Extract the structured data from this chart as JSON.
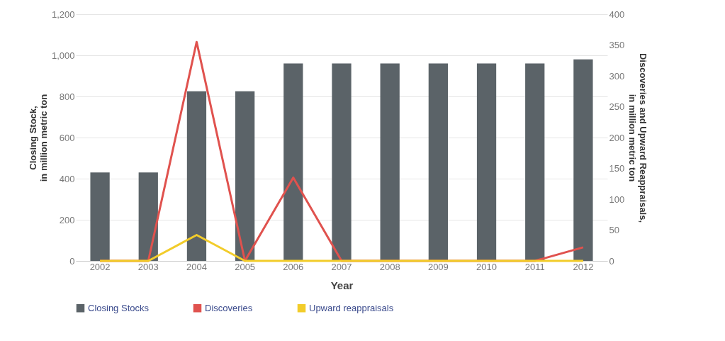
{
  "chart_data": {
    "type": "bar",
    "xlabel": "Year",
    "ylabel": "Closing Stock,\nin million metric ton",
    "y2label": "Discoveries and Upward Reappraisals,\nin million metric ton",
    "categories": [
      "2002",
      "2003",
      "2004",
      "2005",
      "2006",
      "2007",
      "2008",
      "2009",
      "2010",
      "2011",
      "2012"
    ],
    "series": [
      {
        "name": "Closing Stocks",
        "color": "#5b6368",
        "values": [
          430,
          430,
          825,
          825,
          960,
          960,
          960,
          960,
          960,
          960,
          980
        ]
      },
      {
        "name": "Discoveries",
        "type": "line",
        "axis": "y2",
        "color": "#e0524e",
        "values": [
          0,
          0,
          355,
          0,
          135,
          0,
          0,
          0,
          0,
          0,
          22
        ]
      },
      {
        "name": "Upward reappraisals",
        "type": "line",
        "axis": "y2",
        "color": "#f2cc2a",
        "values": [
          0,
          0,
          42,
          0,
          0,
          0,
          0,
          0,
          0,
          0,
          0
        ]
      }
    ],
    "ylim": [
      0,
      1200
    ],
    "yticks": [
      0,
      200,
      400,
      600,
      800,
      {
        "value": 1000,
        "label": "1,000"
      },
      {
        "value": 1200,
        "label": "1,200"
      }
    ],
    "y2lim": [
      0,
      400
    ],
    "y2ticks": [
      0,
      50,
      100,
      150,
      200,
      250,
      300,
      350,
      400
    ],
    "grid": "y",
    "legend": "bottom"
  }
}
